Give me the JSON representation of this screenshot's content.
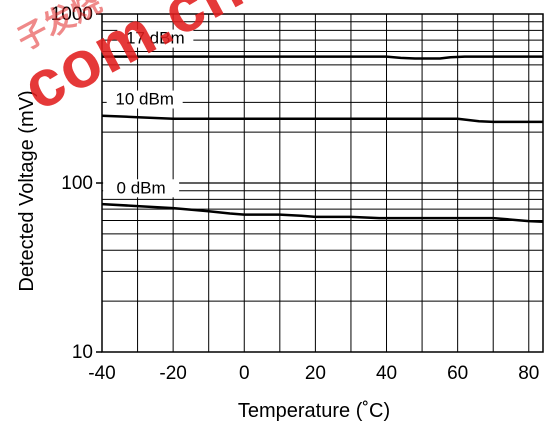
{
  "watermark": {
    "text": "com.cn",
    "chinese": "子发烧",
    "color": "#e11e1e"
  },
  "chart_data": {
    "type": "line",
    "title": "",
    "xlabel": "Temperature (˚C)",
    "ylabel": "Detected Voltage (mV)",
    "xlim": [
      -40,
      84
    ],
    "ylim": [
      10,
      1000
    ],
    "yscale": "log",
    "grid": true,
    "xticks": [
      -40,
      -20,
      0,
      20,
      40,
      60,
      80
    ],
    "xtick_labels": [
      "-40",
      "-20",
      "0",
      "20",
      "40",
      "60",
      "80"
    ],
    "yticks": [
      10,
      100,
      1000
    ],
    "ytick_labels": [
      "10",
      "100",
      "1000"
    ],
    "series": [
      {
        "name": "17 dBm",
        "x": [
          -40,
          -20,
          0,
          20,
          40,
          44,
          48,
          55,
          58,
          62,
          70,
          84
        ],
        "y": [
          560,
          560,
          560,
          560,
          560,
          550,
          545,
          545,
          555,
          560,
          560,
          560
        ]
      },
      {
        "name": "10 dBm",
        "x": [
          -40,
          -30,
          -20,
          0,
          20,
          40,
          60,
          66,
          70,
          84
        ],
        "y": [
          250,
          245,
          240,
          240,
          240,
          240,
          240,
          232,
          230,
          230
        ]
      },
      {
        "name": "0 dBm",
        "x": [
          -40,
          -30,
          -20,
          -10,
          -4,
          0,
          10,
          16,
          20,
          30,
          38,
          40,
          50,
          60,
          70,
          74,
          80,
          84
        ],
        "y": [
          75,
          73,
          71,
          68,
          66,
          65,
          65,
          64,
          63,
          63,
          62,
          62,
          62,
          62,
          62,
          61,
          59.5,
          59
        ]
      }
    ]
  }
}
